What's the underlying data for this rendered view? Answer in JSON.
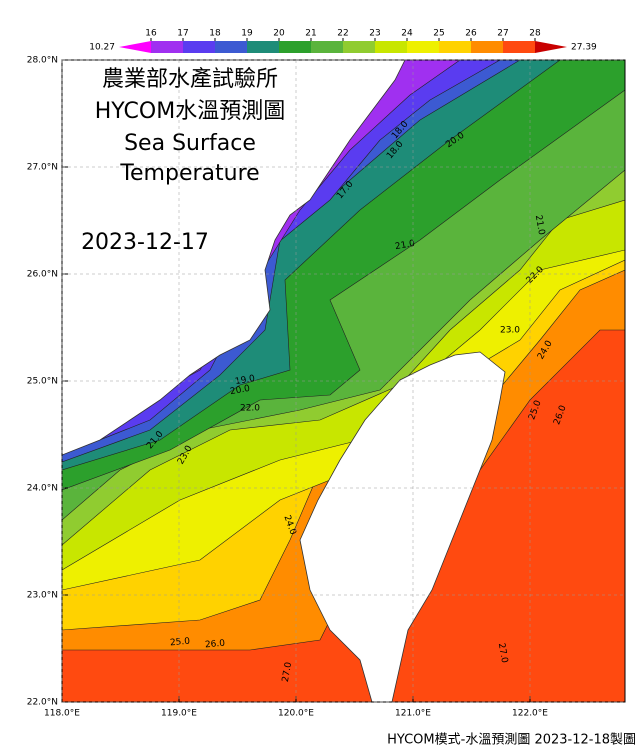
{
  "title_lines": [
    "農業部水產試驗所",
    "HYCOM水溫預測圖",
    "Sea Surface",
    "Temperature"
  ],
  "date": "2023-12-17",
  "colorbar": {
    "min": 10.27,
    "max": 27.39,
    "ticks": [
      16,
      17,
      18,
      19,
      20,
      21,
      22,
      23,
      24,
      25,
      26,
      27,
      28
    ],
    "colors": [
      "#ff00ff",
      "#a030f0",
      "#5a3cf0",
      "#3c5ad2",
      "#1e8c78",
      "#2ca02c",
      "#5ab43c",
      "#90cc30",
      "#c8e600",
      "#eef000",
      "#ffd200",
      "#ff8c00",
      "#ff4a10",
      "#c80000"
    ]
  },
  "lat_ticks": [
    {
      "value": 28,
      "label": "28.0°N"
    },
    {
      "value": 27,
      "label": "27.0°N"
    },
    {
      "value": 26,
      "label": "26.0°N"
    },
    {
      "value": 25,
      "label": "25.0°N"
    },
    {
      "value": 24,
      "label": "24.0°N"
    },
    {
      "value": 23,
      "label": "23.0°N"
    },
    {
      "value": 22,
      "label": "22.0°N"
    }
  ],
  "lon_ticks": [
    {
      "value": 118,
      "label": "118.0°E"
    },
    {
      "value": 119,
      "label": "119.0°E"
    },
    {
      "value": 120,
      "label": "120.0°E"
    },
    {
      "value": 121,
      "label": "121.0°E"
    },
    {
      "value": 122,
      "label": "122.0°E"
    }
  ],
  "contour_labels": [
    "18.0",
    "18.0",
    "17.0",
    "20.0",
    "21.0",
    "19.0",
    "20.0",
    "22.0",
    "21.0",
    "21.0",
    "22.0",
    "23.0",
    "24.0",
    "23.0",
    "24.0",
    "25.0",
    "26.0",
    "27.0",
    "27.0",
    "25.0",
    "26.0"
  ],
  "footer": "HYCOM模式-水溫預測圖 2023-12-18製圖"
}
